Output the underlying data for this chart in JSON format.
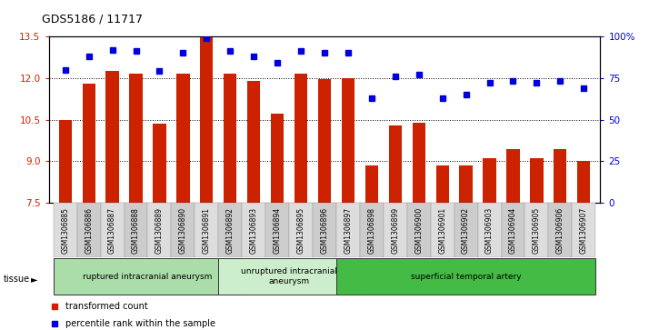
{
  "title": "GDS5186 / 11717",
  "samples": [
    "GSM1306885",
    "GSM1306886",
    "GSM1306887",
    "GSM1306888",
    "GSM1306889",
    "GSM1306890",
    "GSM1306891",
    "GSM1306892",
    "GSM1306893",
    "GSM1306894",
    "GSM1306895",
    "GSM1306896",
    "GSM1306897",
    "GSM1306898",
    "GSM1306899",
    "GSM1306900",
    "GSM1306901",
    "GSM1306902",
    "GSM1306903",
    "GSM1306904",
    "GSM1306905",
    "GSM1306906",
    "GSM1306907"
  ],
  "transformed_count": [
    10.5,
    11.8,
    12.25,
    12.15,
    10.35,
    12.15,
    13.5,
    12.15,
    11.9,
    10.7,
    12.15,
    11.95,
    12.0,
    8.85,
    10.3,
    10.4,
    8.85,
    8.85,
    9.1,
    9.45,
    9.1,
    9.45,
    9.0
  ],
  "percentile_rank": [
    80,
    88,
    92,
    91,
    79,
    90,
    99,
    91,
    88,
    84,
    91,
    90,
    90,
    63,
    76,
    77,
    63,
    65,
    72,
    73,
    72,
    73,
    69
  ],
  "ylim_left": [
    7.5,
    13.5
  ],
  "ylim_right": [
    0,
    100
  ],
  "yticks_left": [
    7.5,
    9.0,
    10.5,
    12.0,
    13.5
  ],
  "yticks_right": [
    0,
    25,
    50,
    75,
    100
  ],
  "bar_color": "#cc2200",
  "dot_color": "#0000dd",
  "tissue_groups": [
    {
      "label": "ruptured intracranial aneurysm",
      "start": 0,
      "end": 7,
      "color": "#aaddaa"
    },
    {
      "label": "unruptured intracranial\naneurysm",
      "start": 7,
      "end": 12,
      "color": "#cceecc"
    },
    {
      "label": "superficial temporal artery",
      "start": 12,
      "end": 22,
      "color": "#44bb44"
    }
  ],
  "background_color": "#ffffff",
  "legend_items": [
    {
      "label": "transformed count",
      "color": "#cc2200"
    },
    {
      "label": "percentile rank within the sample",
      "color": "#0000dd"
    }
  ]
}
